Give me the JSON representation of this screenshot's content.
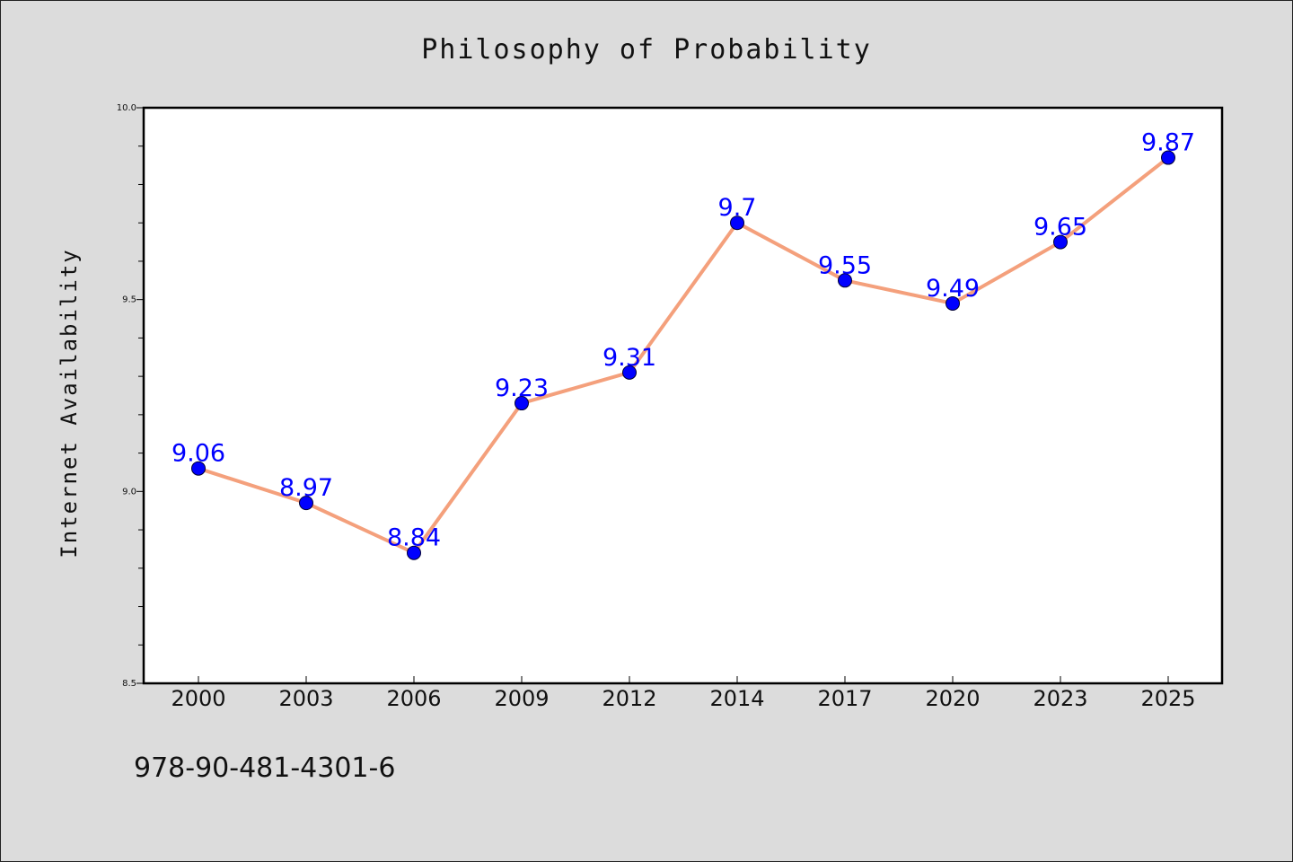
{
  "chart_data": {
    "type": "line",
    "title": "Philosophy of Probability",
    "xlabel": "",
    "ylabel": "Internet Availability",
    "categories": [
      "2000",
      "2003",
      "2006",
      "2009",
      "2012",
      "2014",
      "2017",
      "2020",
      "2023",
      "2025"
    ],
    "series": [
      {
        "values": [
          9.06,
          8.97,
          8.84,
          9.23,
          9.31,
          9.7,
          9.55,
          9.49,
          9.65,
          9.87
        ],
        "labels": [
          "9.06",
          "8.97",
          "8.84",
          "9.23",
          "9.31",
          "9.7",
          "9.55",
          "9.49",
          "9.65",
          "9.87"
        ],
        "line_color": "#f4a07c",
        "marker_color": "#0000ff"
      }
    ],
    "ylim": [
      8.5,
      10.0
    ],
    "yticks": [
      "8.5",
      "9.0",
      "9.5",
      "10.0"
    ],
    "grid": false,
    "legend": "none"
  },
  "footnote": "978-90-481-4301-6"
}
